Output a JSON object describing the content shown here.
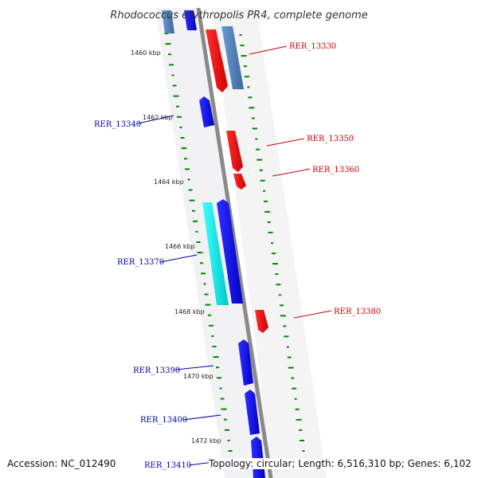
{
  "title": "Rhodococcus erythropolis PR4, complete genome",
  "accession": "Accession: NC_012490",
  "topology": "Topology: circular; Length: 6,516,310 bp; Genes: 6,102",
  "kbp_labels": [
    "1460 kbp",
    "1462 kbp",
    "1464 kbp",
    "1466 kbp",
    "1468 kbp",
    "1470 kbp",
    "1472 kbp"
  ],
  "gene_labels": [
    "RER_13330",
    "RER_13340",
    "RER_13350",
    "RER_13360",
    "RER_13370",
    "RER_13380",
    "RER_13390",
    "RER_13400",
    "RER_13410"
  ],
  "colors": {
    "forward_strand": "#0000ee",
    "reverse_strand": "#ee0000",
    "forward_label": "#0000aa",
    "reverse_label": "#cc0000",
    "highlight_blue": "#4f81b8",
    "highlight_cyan": "#00e5e5",
    "backbone": "#8a8a8a",
    "gc_dashes": "#008800"
  }
}
